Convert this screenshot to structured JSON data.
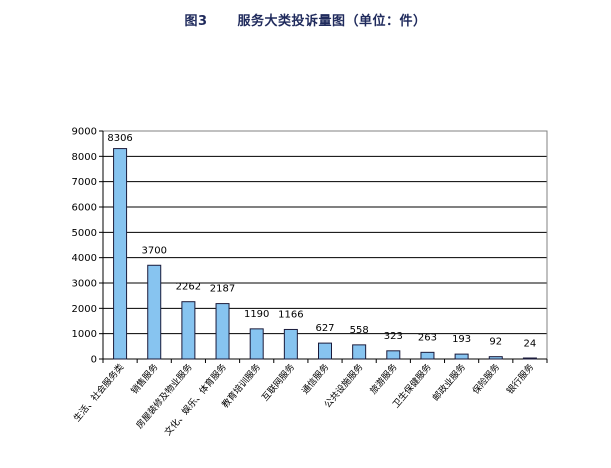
{
  "title": {
    "number": "图3",
    "text": "服务大类投诉量图（单位：件）"
  },
  "chart_data": {
    "type": "bar",
    "categories": [
      "生活、社会服务类",
      "销售服务",
      "房屋装修及物业服务",
      "文化、娱乐、体育服务",
      "教育培训服务",
      "互联网服务",
      "通信服务",
      "公共设施服务",
      "旅游服务",
      "卫生保健服务",
      "邮政业服务",
      "保险服务",
      "银行服务"
    ],
    "values": [
      8306,
      3700,
      2262,
      2187,
      1190,
      1166,
      627,
      558,
      323,
      263,
      193,
      92,
      24
    ],
    "data_labels": [
      "8306",
      "3700",
      "2262",
      "2187",
      "1190",
      "1166",
      "627",
      "558",
      "323",
      "263",
      "193",
      "92",
      "24"
    ],
    "ylim": [
      0,
      9000
    ],
    "yticks": [
      0,
      1000,
      2000,
      3000,
      4000,
      5000,
      6000,
      7000,
      8000,
      9000
    ],
    "grid": true,
    "legend": "none",
    "colors": {
      "bar_fill": "#87c4f0",
      "bar_stroke": "#1a1a3a",
      "grid": "#000000"
    }
  }
}
